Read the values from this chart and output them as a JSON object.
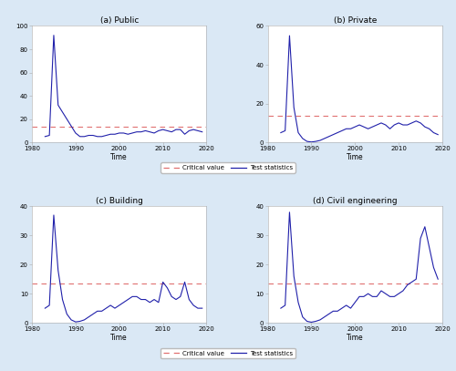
{
  "titles": [
    "(a) Public",
    "(b) Private",
    "(c) Building",
    "(d) Civil engineering"
  ],
  "xlabel": "Time",
  "plot_bg_color": "#ffffff",
  "fig_bg_color": "#dae8f5",
  "line_color": "#2020aa",
  "critical_color": "#e07070",
  "legend_labels": [
    "Critical value",
    "Test statistics"
  ],
  "xlim": [
    1980,
    2020
  ],
  "xticks": [
    1980,
    1990,
    2000,
    2010,
    2020
  ],
  "panels": [
    {
      "ylim": [
        0,
        100
      ],
      "yticks": [
        0,
        20,
        40,
        60,
        80,
        100
      ],
      "critical_value": 13.5,
      "years": [
        1983,
        1984,
        1985,
        1986,
        1987,
        1988,
        1989,
        1990,
        1991,
        1992,
        1993,
        1994,
        1995,
        1996,
        1997,
        1998,
        1999,
        2000,
        2001,
        2002,
        2003,
        2004,
        2005,
        2006,
        2007,
        2008,
        2009,
        2010,
        2011,
        2012,
        2013,
        2014,
        2015,
        2016,
        2017,
        2018,
        2019
      ],
      "values": [
        5,
        6,
        92,
        32,
        26,
        20,
        14,
        8,
        5,
        5,
        6,
        6,
        5,
        5,
        6,
        7,
        7,
        8,
        8,
        7,
        8,
        9,
        9,
        10,
        9,
        8,
        10,
        11,
        10,
        9,
        11,
        11,
        7,
        10,
        11,
        10,
        9
      ]
    },
    {
      "ylim": [
        0,
        60
      ],
      "yticks": [
        0,
        20,
        40,
        60
      ],
      "critical_value": 13.5,
      "years": [
        1983,
        1984,
        1985,
        1986,
        1987,
        1988,
        1989,
        1990,
        1991,
        1992,
        1993,
        1994,
        1995,
        1996,
        1997,
        1998,
        1999,
        2000,
        2001,
        2002,
        2003,
        2004,
        2005,
        2006,
        2007,
        2008,
        2009,
        2010,
        2011,
        2012,
        2013,
        2014,
        2015,
        2016,
        2017,
        2018,
        2019
      ],
      "values": [
        5,
        6,
        55,
        18,
        5,
        2,
        0.5,
        0.2,
        0.5,
        1,
        2,
        3,
        4,
        5,
        6,
        7,
        7,
        8,
        9,
        8,
        7,
        8,
        9,
        10,
        9,
        7,
        9,
        10,
        9,
        9,
        10,
        11,
        10,
        8,
        7,
        5,
        4
      ]
    },
    {
      "ylim": [
        0,
        40
      ],
      "yticks": [
        0,
        10,
        20,
        30,
        40
      ],
      "critical_value": 13.5,
      "years": [
        1983,
        1984,
        1985,
        1986,
        1987,
        1988,
        1989,
        1990,
        1991,
        1992,
        1993,
        1994,
        1995,
        1996,
        1997,
        1998,
        1999,
        2000,
        2001,
        2002,
        2003,
        2004,
        2005,
        2006,
        2007,
        2008,
        2009,
        2010,
        2011,
        2012,
        2013,
        2014,
        2015,
        2016,
        2017,
        2018,
        2019
      ],
      "values": [
        5,
        6,
        37,
        18,
        8,
        3,
        1,
        0.3,
        0.5,
        1,
        2,
        3,
        4,
        4,
        5,
        6,
        5,
        6,
        7,
        8,
        9,
        9,
        8,
        8,
        7,
        8,
        7,
        14,
        12,
        9,
        8,
        9,
        14,
        8,
        6,
        5,
        5
      ]
    },
    {
      "ylim": [
        0,
        40
      ],
      "yticks": [
        0,
        10,
        20,
        30,
        40
      ],
      "critical_value": 13.5,
      "years": [
        1983,
        1984,
        1985,
        1986,
        1987,
        1988,
        1989,
        1990,
        1991,
        1992,
        1993,
        1994,
        1995,
        1996,
        1997,
        1998,
        1999,
        2000,
        2001,
        2002,
        2003,
        2004,
        2005,
        2006,
        2007,
        2008,
        2009,
        2010,
        2011,
        2012,
        2013,
        2014,
        2015,
        2016,
        2017,
        2018,
        2019
      ],
      "values": [
        5,
        6,
        38,
        16,
        7,
        2,
        0.5,
        0.2,
        0.5,
        1,
        2,
        3,
        4,
        4,
        5,
        6,
        5,
        7,
        9,
        9,
        10,
        9,
        9,
        11,
        10,
        9,
        9,
        10,
        11,
        13,
        14,
        15,
        29,
        33,
        26,
        19,
        15
      ]
    }
  ]
}
